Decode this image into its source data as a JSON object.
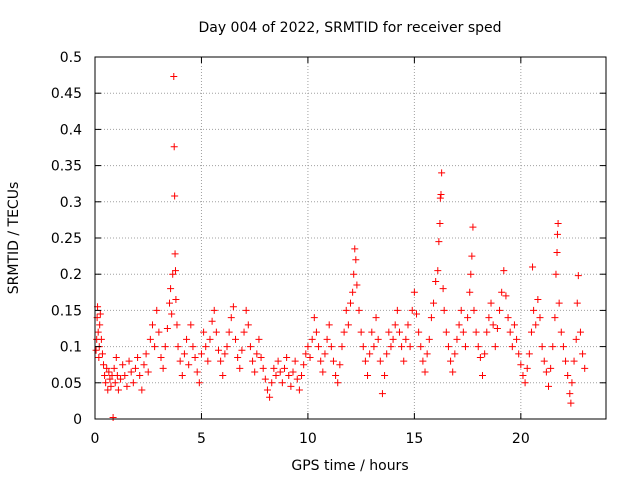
{
  "chart_data": {
    "type": "scatter",
    "title": "Day 004 of 2022, SRMTID for receiver sped",
    "xlabel": "GPS time / hours",
    "ylabel": "SRMTID / TECUs",
    "xlim": [
      0,
      24
    ],
    "ylim": [
      0,
      0.5
    ],
    "xticks": [
      0,
      5,
      10,
      15,
      20
    ],
    "xtick_labels": [
      "0",
      "5",
      "10",
      "15",
      "20"
    ],
    "yticks": [
      0,
      0.05,
      0.1,
      0.15,
      0.2,
      0.25,
      0.3,
      0.35,
      0.4,
      0.45,
      0.5
    ],
    "ytick_labels": [
      "0",
      "0.05",
      "0.1",
      "0.15",
      "0.2",
      "0.25",
      "0.3",
      "0.35",
      "0.4",
      "0.45",
      "0.5"
    ],
    "grid": true,
    "marker": "+",
    "series": [
      {
        "name": "sped",
        "color": "#ff0000",
        "points": [
          [
            0.05,
            0.095
          ],
          [
            0.08,
            0.11
          ],
          [
            0.1,
            0.14
          ],
          [
            0.12,
            0.155
          ],
          [
            0.15,
            0.12
          ],
          [
            0.18,
            0.085
          ],
          [
            0.2,
            0.1
          ],
          [
            0.22,
            0.13
          ],
          [
            0.25,
            0.145
          ],
          [
            0.3,
            0.11
          ],
          [
            0.35,
            0.09
          ],
          [
            0.4,
            0.075
          ],
          [
            0.45,
            0.06
          ],
          [
            0.5,
            0.05
          ],
          [
            0.55,
            0.07
          ],
          [
            0.6,
            0.04
          ],
          [
            0.65,
            0.065
          ],
          [
            0.7,
            0.055
          ],
          [
            0.75,
            0.045
          ],
          [
            0.8,
            0.06
          ],
          [
            0.85,
            0.002
          ],
          [
            0.9,
            0.07
          ],
          [
            0.95,
            0.05
          ],
          [
            1.0,
            0.085
          ],
          [
            1.05,
            0.06
          ],
          [
            1.1,
            0.04
          ],
          [
            1.2,
            0.055
          ],
          [
            1.3,
            0.075
          ],
          [
            1.4,
            0.06
          ],
          [
            1.5,
            0.045
          ],
          [
            1.6,
            0.08
          ],
          [
            1.7,
            0.065
          ],
          [
            1.8,
            0.05
          ],
          [
            1.9,
            0.07
          ],
          [
            2.0,
            0.085
          ],
          [
            2.1,
            0.06
          ],
          [
            2.2,
            0.04
          ],
          [
            2.3,
            0.075
          ],
          [
            2.4,
            0.09
          ],
          [
            2.5,
            0.065
          ],
          [
            2.6,
            0.11
          ],
          [
            2.7,
            0.13
          ],
          [
            2.8,
            0.1
          ],
          [
            2.9,
            0.15
          ],
          [
            3.0,
            0.12
          ],
          [
            3.1,
            0.085
          ],
          [
            3.2,
            0.07
          ],
          [
            3.3,
            0.1
          ],
          [
            3.4,
            0.125
          ],
          [
            3.5,
            0.16
          ],
          [
            3.55,
            0.18
          ],
          [
            3.6,
            0.145
          ],
          [
            3.65,
            0.2
          ],
          [
            3.7,
            0.473
          ],
          [
            3.72,
            0.376
          ],
          [
            3.74,
            0.308
          ],
          [
            3.76,
            0.228
          ],
          [
            3.78,
            0.205
          ],
          [
            3.8,
            0.165
          ],
          [
            3.85,
            0.13
          ],
          [
            3.9,
            0.1
          ],
          [
            4.0,
            0.08
          ],
          [
            4.1,
            0.06
          ],
          [
            4.2,
            0.09
          ],
          [
            4.3,
            0.11
          ],
          [
            4.4,
            0.075
          ],
          [
            4.5,
            0.13
          ],
          [
            4.6,
            0.1
          ],
          [
            4.7,
            0.085
          ],
          [
            4.8,
            0.065
          ],
          [
            4.9,
            0.05
          ],
          [
            5.0,
            0.09
          ],
          [
            5.1,
            0.12
          ],
          [
            5.2,
            0.1
          ],
          [
            5.3,
            0.08
          ],
          [
            5.4,
            0.11
          ],
          [
            5.5,
            0.135
          ],
          [
            5.6,
            0.15
          ],
          [
            5.7,
            0.12
          ],
          [
            5.8,
            0.095
          ],
          [
            5.9,
            0.08
          ],
          [
            6.0,
            0.06
          ],
          [
            6.1,
            0.09
          ],
          [
            6.2,
            0.1
          ],
          [
            6.3,
            0.12
          ],
          [
            6.4,
            0.14
          ],
          [
            6.5,
            0.155
          ],
          [
            6.6,
            0.11
          ],
          [
            6.7,
            0.085
          ],
          [
            6.8,
            0.07
          ],
          [
            6.9,
            0.095
          ],
          [
            7.0,
            0.12
          ],
          [
            7.1,
            0.15
          ],
          [
            7.2,
            0.13
          ],
          [
            7.3,
            0.1
          ],
          [
            7.4,
            0.08
          ],
          [
            7.5,
            0.065
          ],
          [
            7.6,
            0.09
          ],
          [
            7.7,
            0.11
          ],
          [
            7.8,
            0.085
          ],
          [
            7.9,
            0.07
          ],
          [
            8.0,
            0.055
          ],
          [
            8.1,
            0.04
          ],
          [
            8.2,
            0.03
          ],
          [
            8.3,
            0.05
          ],
          [
            8.4,
            0.07
          ],
          [
            8.5,
            0.06
          ],
          [
            8.6,
            0.08
          ],
          [
            8.7,
            0.065
          ],
          [
            8.8,
            0.05
          ],
          [
            8.9,
            0.07
          ],
          [
            9.0,
            0.085
          ],
          [
            9.1,
            0.06
          ],
          [
            9.2,
            0.045
          ],
          [
            9.3,
            0.065
          ],
          [
            9.4,
            0.08
          ],
          [
            9.5,
            0.055
          ],
          [
            9.6,
            0.04
          ],
          [
            9.7,
            0.06
          ],
          [
            9.8,
            0.075
          ],
          [
            9.9,
            0.09
          ],
          [
            10.0,
            0.1
          ],
          [
            10.1,
            0.085
          ],
          [
            10.2,
            0.11
          ],
          [
            10.3,
            0.14
          ],
          [
            10.4,
            0.12
          ],
          [
            10.5,
            0.1
          ],
          [
            10.6,
            0.08
          ],
          [
            10.7,
            0.065
          ],
          [
            10.8,
            0.09
          ],
          [
            10.9,
            0.11
          ],
          [
            11.0,
            0.13
          ],
          [
            11.1,
            0.1
          ],
          [
            11.2,
            0.08
          ],
          [
            11.3,
            0.06
          ],
          [
            11.4,
            0.05
          ],
          [
            11.5,
            0.075
          ],
          [
            11.6,
            0.1
          ],
          [
            11.7,
            0.12
          ],
          [
            11.8,
            0.15
          ],
          [
            11.9,
            0.13
          ],
          [
            12.0,
            0.16
          ],
          [
            12.1,
            0.175
          ],
          [
            12.15,
            0.2
          ],
          [
            12.2,
            0.235
          ],
          [
            12.25,
            0.22
          ],
          [
            12.3,
            0.185
          ],
          [
            12.4,
            0.15
          ],
          [
            12.5,
            0.12
          ],
          [
            12.6,
            0.1
          ],
          [
            12.7,
            0.08
          ],
          [
            12.8,
            0.06
          ],
          [
            12.9,
            0.09
          ],
          [
            13.0,
            0.12
          ],
          [
            13.1,
            0.1
          ],
          [
            13.2,
            0.14
          ],
          [
            13.3,
            0.11
          ],
          [
            13.4,
            0.08
          ],
          [
            13.5,
            0.035
          ],
          [
            13.6,
            0.06
          ],
          [
            13.7,
            0.09
          ],
          [
            13.8,
            0.12
          ],
          [
            13.9,
            0.1
          ],
          [
            14.0,
            0.11
          ],
          [
            14.1,
            0.13
          ],
          [
            14.2,
            0.15
          ],
          [
            14.3,
            0.12
          ],
          [
            14.4,
            0.1
          ],
          [
            14.5,
            0.08
          ],
          [
            14.6,
            0.11
          ],
          [
            14.7,
            0.13
          ],
          [
            14.8,
            0.1
          ],
          [
            14.9,
            0.15
          ],
          [
            15.0,
            0.175
          ],
          [
            15.1,
            0.145
          ],
          [
            15.2,
            0.12
          ],
          [
            15.3,
            0.1
          ],
          [
            15.4,
            0.08
          ],
          [
            15.5,
            0.065
          ],
          [
            15.6,
            0.09
          ],
          [
            15.7,
            0.11
          ],
          [
            15.8,
            0.14
          ],
          [
            15.9,
            0.16
          ],
          [
            16.0,
            0.19
          ],
          [
            16.1,
            0.205
          ],
          [
            16.15,
            0.245
          ],
          [
            16.2,
            0.27
          ],
          [
            16.22,
            0.305
          ],
          [
            16.25,
            0.31
          ],
          [
            16.28,
            0.34
          ],
          [
            16.35,
            0.18
          ],
          [
            16.4,
            0.15
          ],
          [
            16.5,
            0.12
          ],
          [
            16.6,
            0.1
          ],
          [
            16.7,
            0.08
          ],
          [
            16.8,
            0.065
          ],
          [
            16.9,
            0.09
          ],
          [
            17.0,
            0.11
          ],
          [
            17.1,
            0.13
          ],
          [
            17.2,
            0.15
          ],
          [
            17.3,
            0.12
          ],
          [
            17.4,
            0.1
          ],
          [
            17.5,
            0.14
          ],
          [
            17.6,
            0.175
          ],
          [
            17.65,
            0.2
          ],
          [
            17.7,
            0.225
          ],
          [
            17.75,
            0.265
          ],
          [
            17.8,
            0.15
          ],
          [
            17.9,
            0.12
          ],
          [
            18.0,
            0.1
          ],
          [
            18.1,
            0.085
          ],
          [
            18.2,
            0.06
          ],
          [
            18.3,
            0.09
          ],
          [
            18.4,
            0.12
          ],
          [
            18.5,
            0.14
          ],
          [
            18.6,
            0.16
          ],
          [
            18.7,
            0.13
          ],
          [
            18.8,
            0.1
          ],
          [
            18.9,
            0.125
          ],
          [
            19.0,
            0.15
          ],
          [
            19.1,
            0.175
          ],
          [
            19.2,
            0.205
          ],
          [
            19.3,
            0.17
          ],
          [
            19.4,
            0.14
          ],
          [
            19.5,
            0.12
          ],
          [
            19.6,
            0.1
          ],
          [
            19.7,
            0.13
          ],
          [
            19.8,
            0.11
          ],
          [
            19.9,
            0.09
          ],
          [
            20.0,
            0.075
          ],
          [
            20.1,
            0.06
          ],
          [
            20.2,
            0.05
          ],
          [
            20.3,
            0.07
          ],
          [
            20.4,
            0.09
          ],
          [
            20.5,
            0.12
          ],
          [
            20.55,
            0.21
          ],
          [
            20.6,
            0.15
          ],
          [
            20.7,
            0.13
          ],
          [
            20.8,
            0.165
          ],
          [
            20.9,
            0.14
          ],
          [
            21.0,
            0.1
          ],
          [
            21.1,
            0.08
          ],
          [
            21.2,
            0.065
          ],
          [
            21.3,
            0.045
          ],
          [
            21.4,
            0.07
          ],
          [
            21.5,
            0.1
          ],
          [
            21.6,
            0.14
          ],
          [
            21.65,
            0.2
          ],
          [
            21.7,
            0.23
          ],
          [
            21.72,
            0.255
          ],
          [
            21.75,
            0.27
          ],
          [
            21.8,
            0.16
          ],
          [
            21.9,
            0.12
          ],
          [
            22.0,
            0.1
          ],
          [
            22.1,
            0.08
          ],
          [
            22.2,
            0.06
          ],
          [
            22.3,
            0.035
          ],
          [
            22.35,
            0.022
          ],
          [
            22.4,
            0.05
          ],
          [
            22.5,
            0.08
          ],
          [
            22.6,
            0.11
          ],
          [
            22.65,
            0.16
          ],
          [
            22.7,
            0.198
          ],
          [
            22.8,
            0.12
          ],
          [
            22.9,
            0.09
          ],
          [
            23.0,
            0.07
          ]
        ]
      }
    ]
  }
}
